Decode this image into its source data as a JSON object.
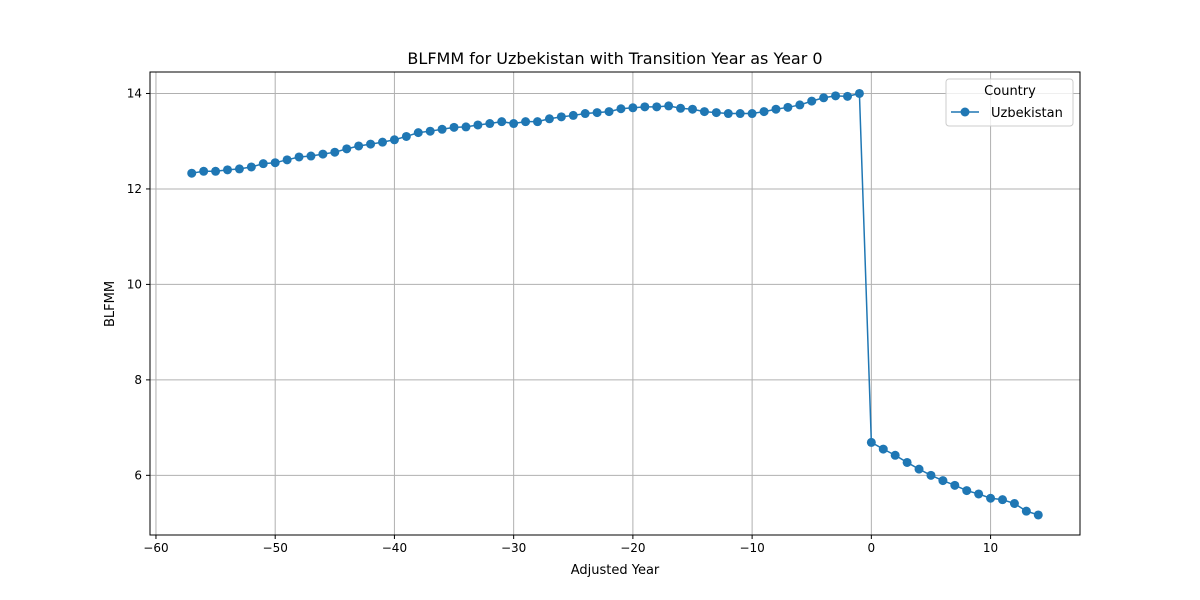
{
  "chart_data": {
    "type": "line",
    "title": "BLFMM for Uzbekistan with Transition Year as Year 0",
    "xlabel": "Adjusted Year",
    "ylabel": "BLFMM",
    "xlim": [
      -60.5,
      17.5
    ],
    "ylim": [
      4.75,
      14.45
    ],
    "xticks": [
      -60,
      -50,
      -40,
      -30,
      -20,
      -10,
      0,
      10
    ],
    "xtick_labels": [
      "−60",
      "−50",
      "−40",
      "−30",
      "−20",
      "−10",
      "0",
      "10"
    ],
    "yticks": [
      6,
      8,
      10,
      12,
      14
    ],
    "ytick_labels": [
      "6",
      "8",
      "10",
      "12",
      "14"
    ],
    "grid": true,
    "legend": {
      "title": "Country",
      "placement": "top-right"
    },
    "series": [
      {
        "name": "Uzbekistan",
        "color": "#1f77b4",
        "marker": "circle",
        "x": [
          -57,
          -56,
          -55,
          -54,
          -53,
          -52,
          -51,
          -50,
          -49,
          -48,
          -47,
          -46,
          -45,
          -44,
          -43,
          -42,
          -41,
          -40,
          -39,
          -38,
          -37,
          -36,
          -35,
          -34,
          -33,
          -32,
          -31,
          -30,
          -29,
          -28,
          -27,
          -26,
          -25,
          -24,
          -23,
          -22,
          -21,
          -20,
          -19,
          -18,
          -17,
          -16,
          -15,
          -14,
          -13,
          -12,
          -11,
          -10,
          -9,
          -8,
          -7,
          -6,
          -5,
          -4,
          -3,
          -2,
          -1,
          0,
          1,
          2,
          3,
          4,
          5,
          6,
          7,
          8,
          9,
          10,
          11,
          12,
          13,
          14
        ],
        "y": [
          12.33,
          12.37,
          12.37,
          12.4,
          12.42,
          12.46,
          12.53,
          12.55,
          12.61,
          12.67,
          12.69,
          12.73,
          12.77,
          12.84,
          12.9,
          12.94,
          12.98,
          13.03,
          13.1,
          13.18,
          13.21,
          13.25,
          13.29,
          13.3,
          13.34,
          13.37,
          13.41,
          13.37,
          13.41,
          13.41,
          13.47,
          13.51,
          13.54,
          13.58,
          13.6,
          13.62,
          13.68,
          13.7,
          13.72,
          13.72,
          13.74,
          13.69,
          13.67,
          13.62,
          13.6,
          13.58,
          13.58,
          13.58,
          13.62,
          13.67,
          13.71,
          13.76,
          13.84,
          13.91,
          13.95,
          13.94,
          14.0,
          6.69,
          6.55,
          6.42,
          6.27,
          6.13,
          6.0,
          5.89,
          5.79,
          5.68,
          5.61,
          5.52,
          5.49,
          5.41,
          5.25,
          5.17
        ]
      }
    ]
  }
}
